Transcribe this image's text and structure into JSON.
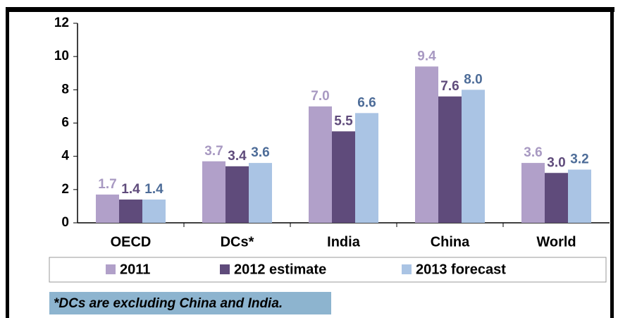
{
  "chart_data": {
    "type": "bar",
    "categories": [
      "OECD",
      "DCs*",
      "India",
      "China",
      "World"
    ],
    "series": [
      {
        "name": "2011",
        "color": "#b1a0c9",
        "label_color": "#a899c2",
        "values": [
          1.7,
          3.7,
          7.0,
          9.4,
          3.6
        ],
        "value_labels": [
          "1.7",
          "3.7",
          "7.0",
          "9.4",
          "3.6"
        ]
      },
      {
        "name": "2012 estimate",
        "color": "#5f4b7b",
        "label_color": "#5f4b7b",
        "values": [
          1.4,
          3.4,
          5.5,
          7.6,
          3.0
        ],
        "value_labels": [
          "1.4",
          "3.4",
          "5.5",
          "7.6",
          "3.0"
        ]
      },
      {
        "name": "2013 forecast",
        "color": "#aac4e4",
        "label_color": "#4d6c98",
        "values": [
          1.4,
          3.6,
          6.6,
          8.0,
          3.2
        ],
        "value_labels": [
          "1.4",
          "3.6",
          "6.6",
          "8.0",
          "3.2"
        ]
      }
    ],
    "ylim": [
      0,
      12
    ],
    "yticks": [
      0,
      2,
      4,
      6,
      8,
      10,
      12
    ],
    "footnote": "*DCs are excluding China and India."
  }
}
